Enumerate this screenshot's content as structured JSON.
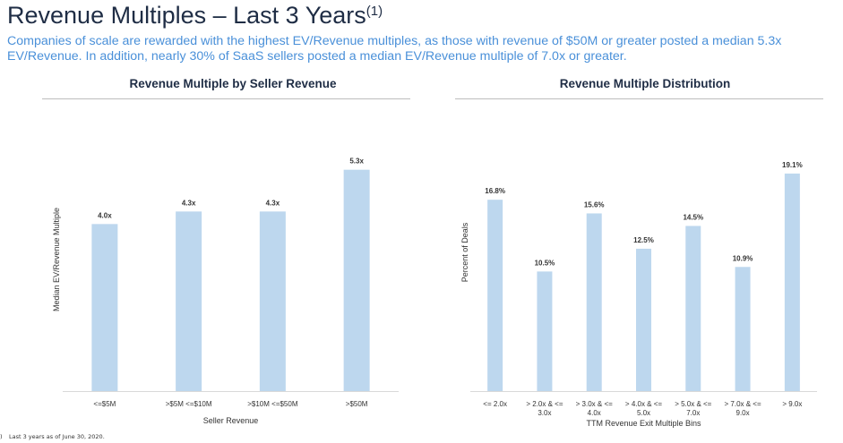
{
  "page": {
    "title": "Revenue Multiples – Last 3 Years",
    "title_superscript": "(1)",
    "subtitle": "Companies of scale are rewarded with the highest EV/Revenue multiples, as those with revenue of $50M or greater posted a median 5.3x EV/Revenue. In addition, nearly 30% of SaaS sellers posted a median EV/Revenue multiple of 7.0x or greater.",
    "footnote_mark": ")",
    "footnote": "Last 3 years as of June 30, 2020."
  },
  "colors": {
    "bar": "#bdd7ee",
    "title": "#1f2d45",
    "subtitle": "#4a90d9",
    "axis": "#d9d9d9"
  },
  "chart_data": [
    {
      "type": "bar",
      "title": "Revenue Multiple by Seller Revenue",
      "categories": [
        "<=$5M",
        ">$5M <=$10M",
        ">$10M <=$50M",
        ">$50M"
      ],
      "values": [
        4.0,
        4.3,
        4.3,
        5.3
      ],
      "data_labels": [
        "4.0x",
        "4.3x",
        "4.3x",
        "5.3x"
      ],
      "xlabel": "Seller Revenue",
      "ylabel": "Median EV/Revenue Multiple",
      "ylim": [
        0,
        6.0
      ],
      "grid": false,
      "legend": "none"
    },
    {
      "type": "bar",
      "title": "Revenue Multiple Distribution",
      "categories": [
        "<= 2.0x",
        "> 2.0x & <= 3.0x",
        "> 3.0x & <= 4.0x",
        "> 4.0x & <= 5.0x",
        "> 5.0x & <= 7.0x",
        "> 7.0x & <= 9.0x",
        "> 9.0x"
      ],
      "category_lines": [
        [
          "<= 2.0x"
        ],
        [
          "> 2.0x & <=",
          "3.0x"
        ],
        [
          "> 3.0x & <=",
          "4.0x"
        ],
        [
          "> 4.0x & <=",
          "5.0x"
        ],
        [
          "> 5.0x & <=",
          "7.0x"
        ],
        [
          "> 7.0x & <=",
          "9.0x"
        ],
        [
          "> 9.0x"
        ]
      ],
      "values": [
        16.8,
        10.5,
        15.6,
        12.5,
        14.5,
        10.9,
        19.1
      ],
      "data_labels": [
        "16.8%",
        "10.5%",
        "15.6%",
        "12.5%",
        "14.5%",
        "10.9%",
        "19.1%"
      ],
      "xlabel": "TTM Revenue Exit Multiple Bins",
      "ylabel": "Percent of Deals",
      "ylim": [
        0,
        22.0
      ],
      "grid": false,
      "legend": "none"
    }
  ]
}
